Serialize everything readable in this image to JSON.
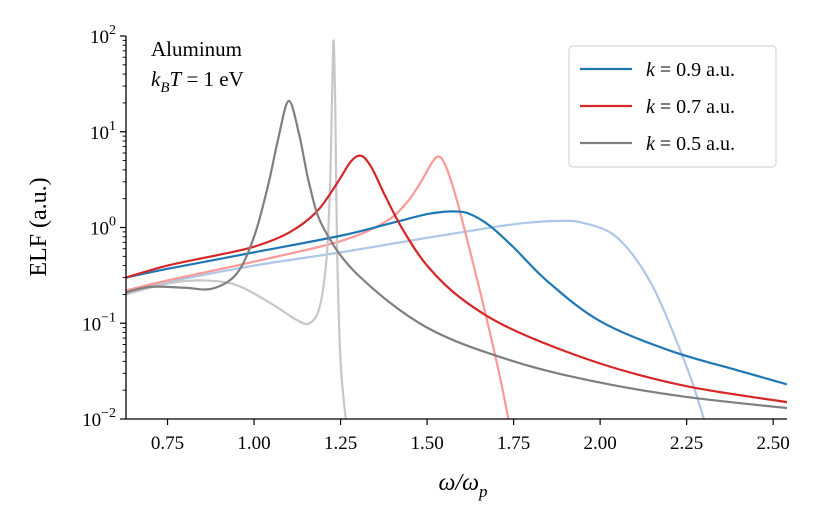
{
  "chart_data": {
    "type": "line",
    "xlabel": "ω/ω",
    "xlabel_sub": "p",
    "ylabel": "ELF (a.u.)",
    "xlim": [
      0.63,
      2.54
    ],
    "ylim_log10": [
      -2,
      2
    ],
    "yscale": "log",
    "x_ticks": [
      "0.75",
      "1.00",
      "1.25",
      "1.50",
      "1.75",
      "2.00",
      "2.25",
      "2.50"
    ],
    "x_tick_values": [
      0.75,
      1.0,
      1.25,
      1.5,
      1.75,
      2.0,
      2.25,
      2.5
    ],
    "y_ticks": [
      {
        "value": -2,
        "base": "10",
        "exp": "−2"
      },
      {
        "value": -1,
        "base": "10",
        "exp": "−1"
      },
      {
        "value": 0,
        "base": "10",
        "exp": "0"
      },
      {
        "value": 1,
        "base": "10",
        "exp": "1"
      },
      {
        "value": 2,
        "base": "10",
        "exp": "2"
      }
    ],
    "annotation": {
      "line1": "Aluminum",
      "line2_var": "k",
      "line2_sub": "B",
      "line2_var2": "T",
      "line2_rest": " = 1 eV"
    },
    "legend_position": "top-right",
    "legend": [
      {
        "var": "k",
        "text": " = 0.9 a.u.",
        "color": "#1f77b4"
      },
      {
        "var": "k",
        "text": " = 0.7 a.u.",
        "color": "#d62728"
      },
      {
        "var": "k",
        "text": " = 0.5 a.u.",
        "color": "#7f7f7f"
      }
    ],
    "series": [
      {
        "name": "k = 0.9 a.u.",
        "color": "#1f77b4",
        "x": [
          0.63,
          0.75,
          1.0,
          1.25,
          1.4,
          1.5,
          1.55,
          1.58,
          1.62,
          1.68,
          1.75,
          1.85,
          2.0,
          2.2,
          2.4,
          2.54
        ],
        "y": [
          0.3,
          0.37,
          0.55,
          0.82,
          1.12,
          1.38,
          1.46,
          1.47,
          1.4,
          1.05,
          0.62,
          0.27,
          0.105,
          0.052,
          0.032,
          0.023
        ]
      },
      {
        "name": "k = 0.9 a.u. (faint)",
        "color": "#aec7e8",
        "x": [
          0.63,
          0.75,
          1.0,
          1.25,
          1.5,
          1.7,
          1.8,
          1.88,
          1.95,
          2.05,
          2.15,
          2.25,
          2.3
        ],
        "y": [
          0.22,
          0.27,
          0.4,
          0.55,
          0.78,
          1.02,
          1.13,
          1.17,
          1.12,
          0.78,
          0.25,
          0.035,
          0.01
        ]
      },
      {
        "name": "k = 0.7 a.u.",
        "color": "#d62728",
        "x": [
          0.63,
          0.75,
          0.9,
          1.0,
          1.1,
          1.18,
          1.24,
          1.28,
          1.31,
          1.34,
          1.38,
          1.43,
          1.5,
          1.6,
          1.75,
          2.0,
          2.25,
          2.54
        ],
        "y": [
          0.3,
          0.4,
          0.52,
          0.63,
          0.88,
          1.45,
          2.9,
          4.9,
          5.6,
          4.2,
          2.1,
          0.95,
          0.4,
          0.18,
          0.085,
          0.038,
          0.022,
          0.015
        ]
      },
      {
        "name": "k = 0.7 a.u. (faint)",
        "color": "#ff9896",
        "x": [
          0.63,
          0.75,
          1.0,
          1.25,
          1.38,
          1.44,
          1.48,
          1.51,
          1.53,
          1.55,
          1.58,
          1.62,
          1.67,
          1.71,
          1.735
        ],
        "y": [
          0.22,
          0.28,
          0.44,
          0.72,
          1.15,
          1.8,
          2.9,
          4.5,
          5.5,
          4.7,
          2.3,
          0.65,
          0.12,
          0.028,
          0.01
        ]
      },
      {
        "name": "k = 0.5 a.u.",
        "color": "#7f7f7f",
        "x": [
          0.63,
          0.7,
          0.8,
          0.88,
          0.95,
          1.0,
          1.04,
          1.07,
          1.1,
          1.13,
          1.16,
          1.2,
          1.3,
          1.5,
          1.75,
          2.0,
          2.25,
          2.54
        ],
        "y": [
          0.21,
          0.24,
          0.235,
          0.23,
          0.33,
          0.8,
          2.7,
          8.5,
          21.0,
          9.5,
          2.8,
          1.0,
          0.32,
          0.09,
          0.04,
          0.024,
          0.017,
          0.013
        ]
      },
      {
        "name": "k = 0.5 a.u. (faint)",
        "color": "#c7c7c7",
        "x": [
          0.63,
          0.75,
          0.85,
          0.95,
          1.05,
          1.12,
          1.16,
          1.19,
          1.21,
          1.22,
          1.225,
          1.23,
          1.235,
          1.24,
          1.25,
          1.265
        ],
        "y": [
          0.2,
          0.26,
          0.28,
          0.25,
          0.16,
          0.11,
          0.1,
          0.15,
          0.5,
          3.0,
          20.0,
          90.0,
          15.0,
          0.6,
          0.04,
          0.01
        ]
      }
    ]
  }
}
